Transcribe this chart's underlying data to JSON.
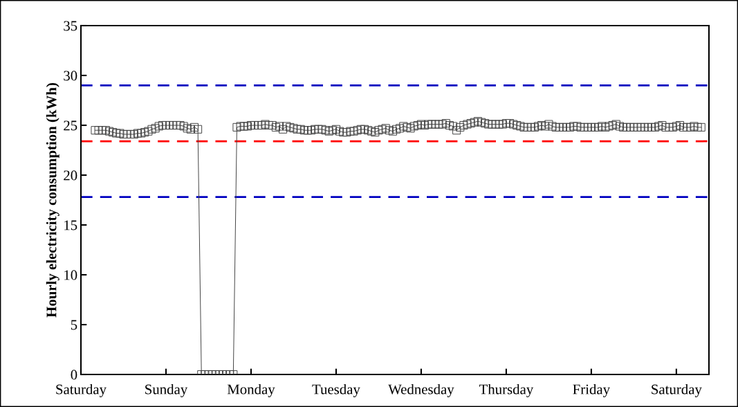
{
  "chart_data": {
    "type": "line",
    "ylabel": "Hourly electricity consumption (kWh)",
    "categories": [
      "Saturday",
      null,
      null,
      null,
      null,
      null,
      null,
      null,
      null,
      null,
      null,
      null,
      null,
      null,
      null,
      null,
      null,
      null,
      null,
      null,
      null,
      null,
      null,
      null,
      "Sunday",
      null,
      null,
      null,
      null,
      null,
      null,
      null,
      null,
      null,
      null,
      null,
      null,
      null,
      null,
      null,
      null,
      null,
      null,
      null,
      null,
      null,
      null,
      null,
      "Monday",
      null,
      null,
      null,
      null,
      null,
      null,
      null,
      null,
      null,
      null,
      null,
      null,
      null,
      null,
      null,
      null,
      null,
      null,
      null,
      null,
      null,
      null,
      null,
      "Tuesday",
      null,
      null,
      null,
      null,
      null,
      null,
      null,
      null,
      null,
      null,
      null,
      null,
      null,
      null,
      null,
      null,
      null,
      null,
      null,
      null,
      null,
      null,
      null,
      "Wednesday",
      null,
      null,
      null,
      null,
      null,
      null,
      null,
      null,
      null,
      null,
      null,
      null,
      null,
      null,
      null,
      null,
      null,
      null,
      null,
      null,
      null,
      null,
      null,
      "Thursday",
      null,
      null,
      null,
      null,
      null,
      null,
      null,
      null,
      null,
      null,
      null,
      null,
      null,
      null,
      null,
      null,
      null,
      null,
      null,
      null,
      null,
      null,
      null,
      "Friday",
      null,
      null,
      null,
      null,
      null,
      null,
      null,
      null,
      null,
      null,
      null,
      null,
      null,
      null,
      null,
      null,
      null,
      null,
      null,
      null,
      null,
      null,
      null,
      "Saturday",
      null,
      null,
      null,
      null,
      null,
      null,
      null
    ],
    "ylim": [
      0,
      35
    ],
    "yticks": [
      0,
      5,
      10,
      15,
      20,
      25,
      30,
      35
    ],
    "marker": "square",
    "line_style": "solid",
    "ref_lines": [
      {
        "axis": "y",
        "value": 29.0,
        "color": "#0000c0",
        "line_style": "dashed"
      },
      {
        "axis": "y",
        "value": 23.4,
        "color": "#ff0000",
        "line_style": "dashed"
      },
      {
        "axis": "y",
        "value": 17.8,
        "color": "#0000c0",
        "line_style": "dashed"
      }
    ],
    "series": [
      {
        "color": "#404040",
        "values": [
          null,
          null,
          null,
          null,
          24.5,
          24.5,
          24.5,
          24.5,
          24.4,
          24.3,
          24.2,
          24.2,
          24.1,
          24.1,
          24.1,
          24.1,
          24.2,
          24.2,
          24.3,
          24.4,
          24.6,
          24.7,
          24.9,
          25.0,
          25.0,
          25.0,
          25.0,
          25.0,
          25.0,
          24.9,
          24.7,
          24.6,
          24.8,
          24.6,
          0,
          0,
          0,
          0,
          0,
          0,
          0,
          0,
          0,
          0,
          24.8,
          24.9,
          24.9,
          24.9,
          25.0,
          25.0,
          25.0,
          25.0,
          25.1,
          25.0,
          25.0,
          24.8,
          24.9,
          24.6,
          24.9,
          24.8,
          24.7,
          24.6,
          24.6,
          24.5,
          24.5,
          24.5,
          24.6,
          24.6,
          24.6,
          24.5,
          24.4,
          24.5,
          24.6,
          24.4,
          24.3,
          24.3,
          24.4,
          24.4,
          24.5,
          24.6,
          24.6,
          24.5,
          24.4,
          24.3,
          24.5,
          24.6,
          24.7,
          24.5,
          24.4,
          24.6,
          24.7,
          24.9,
          24.8,
          24.7,
          24.9,
          25.0,
          25.1,
          25.0,
          25.1,
          25.1,
          25.1,
          25.1,
          25.1,
          25.2,
          25.0,
          24.9,
          24.5,
          24.8,
          25.0,
          25.1,
          25.2,
          25.3,
          25.4,
          25.3,
          25.2,
          25.1,
          25.1,
          25.1,
          25.1,
          25.1,
          25.2,
          25.2,
          25.1,
          25.0,
          24.9,
          24.8,
          24.8,
          24.8,
          24.8,
          24.9,
          25.0,
          24.9,
          25.1,
          24.9,
          24.8,
          24.8,
          24.8,
          24.8,
          24.8,
          24.9,
          24.9,
          24.8,
          24.8,
          24.8,
          24.8,
          24.8,
          24.8,
          24.9,
          24.8,
          24.9,
          25.0,
          25.1,
          24.9,
          24.8,
          24.8,
          24.8,
          24.8,
          24.8,
          24.8,
          24.8,
          24.8,
          24.8,
          24.8,
          24.9,
          25.0,
          24.8,
          24.8,
          24.8,
          24.9,
          25.0,
          24.8,
          24.8,
          24.8,
          24.9,
          24.8,
          24.8
        ]
      }
    ]
  }
}
